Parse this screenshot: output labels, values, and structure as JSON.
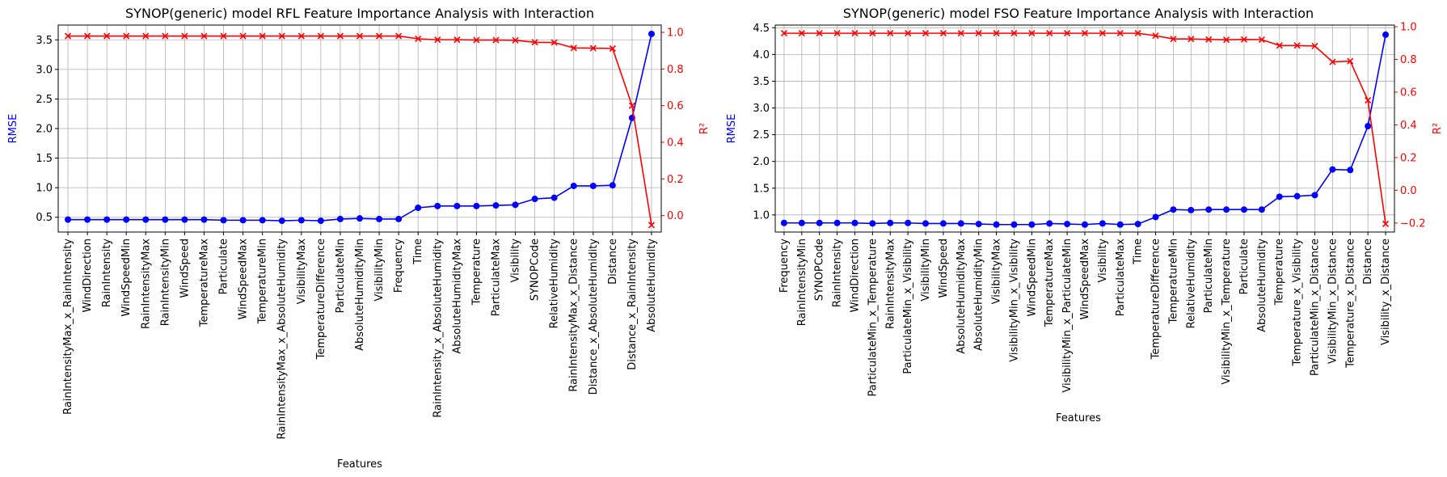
{
  "chart_data": [
    {
      "type": "line",
      "title": "SYNOP(generic) model RFL Feature Importance Analysis with Interaction",
      "xlabel": "Features",
      "ylabel_left": "RMSE",
      "ylabel_right": "R²",
      "grid": true,
      "categories": [
        "RainIntensityMax_x_RainIntensity",
        "WindDirection",
        "RainIntensity",
        "WindSpeedMin",
        "RainIntensityMax",
        "RainIntensityMin",
        "WindSpeed",
        "TemperatureMax",
        "Particulate",
        "WindSpeedMax",
        "TemperatureMin",
        "RainIntensityMax_x_AbsoluteHumidity",
        "VisibilityMax",
        "TemperatureDifference",
        "ParticulateMin",
        "AbsoluteHumidityMin",
        "VisibilityMin",
        "Frequency",
        "Time",
        "RainIntensity_x_AbsoluteHumidity",
        "AbsoluteHumidityMax",
        "Temperature",
        "ParticulateMax",
        "Visibility",
        "SYNOPCode",
        "RelativeHumidity",
        "RainIntensityMax_x_Distance",
        "Distance_x_AbsoluteHumidity",
        "Distance",
        "Distance_x_RainIntensity",
        "AbsoluteHumidity"
      ],
      "ylim_left": [
        0.25,
        3.75
      ],
      "yticks_left": [
        "0.5",
        "1.0",
        "1.5",
        "2.0",
        "2.5",
        "3.0",
        "3.5"
      ],
      "ylim_right": [
        -0.09,
        1.04
      ],
      "yticks_right": [
        "0.0",
        "0.2",
        "0.4",
        "0.6",
        "0.8",
        "1.0"
      ],
      "series": [
        {
          "axis": "left",
          "color": "#0000ff",
          "marker": "circle",
          "values": [
            0.46,
            0.46,
            0.46,
            0.46,
            0.46,
            0.46,
            0.46,
            0.46,
            0.45,
            0.45,
            0.45,
            0.44,
            0.45,
            0.44,
            0.47,
            0.48,
            0.47,
            0.47,
            0.66,
            0.69,
            0.69,
            0.69,
            0.7,
            0.71,
            0.81,
            0.83,
            1.03,
            1.03,
            1.04,
            2.18,
            3.6
          ]
        },
        {
          "axis": "right",
          "color": "#ff0000",
          "marker": "x",
          "values": [
            0.98,
            0.98,
            0.98,
            0.98,
            0.98,
            0.98,
            0.98,
            0.98,
            0.98,
            0.98,
            0.98,
            0.98,
            0.98,
            0.98,
            0.98,
            0.98,
            0.98,
            0.98,
            0.965,
            0.96,
            0.96,
            0.958,
            0.958,
            0.957,
            0.946,
            0.945,
            0.915,
            0.914,
            0.912,
            0.6,
            -0.052
          ]
        }
      ]
    },
    {
      "type": "line",
      "title": "SYNOP(generic) model FSO Feature Importance Analysis with Interaction",
      "xlabel": "Features",
      "ylabel_left": "RMSE",
      "ylabel_right": "R²",
      "grid": true,
      "categories": [
        "Frequency",
        "RainIntensityMin",
        "SYNOPCode",
        "RainIntensity",
        "WindDirection",
        "ParticulateMin_x_Temperature",
        "RainIntensityMax",
        "ParticulateMin_x_Visibility",
        "VisibilityMin",
        "WindSpeed",
        "AbsoluteHumidityMax",
        "AbsoluteHumidityMin",
        "VisibilityMax",
        "VisibilityMin_x_Visibility",
        "WindSpeedMin",
        "TemperatureMax",
        "VisibilityMin_x_ParticulateMin",
        "WindSpeedMax",
        "Visibility",
        "ParticulateMax",
        "Time",
        "TemperatureDifference",
        "TemperatureMin",
        "RelativeHumidity",
        "ParticulateMin",
        "VisibilityMin_x_Temperature",
        "Particulate",
        "AbsoluteHumidity",
        "Temperature",
        "Temperature_x_Visibility",
        "ParticulateMin_x_Distance",
        "VisibilityMin_x_Distance",
        "Temperature_x_Distance",
        "Distance",
        "Visibility_x_Distance"
      ],
      "ylim_left": [
        0.68,
        4.55
      ],
      "yticks_left": [
        "1.0",
        "1.5",
        "2.0",
        "2.5",
        "3.0",
        "3.5",
        "4.0",
        "4.5"
      ],
      "ylim_right": [
        -0.255,
        1.01
      ],
      "yticks_right": [
        "−0.2",
        "0.0",
        "0.2",
        "0.4",
        "0.6",
        "0.8",
        "1.0"
      ],
      "series": [
        {
          "axis": "left",
          "color": "#0000ff",
          "marker": "circle",
          "values": [
            0.85,
            0.85,
            0.85,
            0.85,
            0.85,
            0.84,
            0.85,
            0.85,
            0.84,
            0.84,
            0.84,
            0.83,
            0.82,
            0.82,
            0.82,
            0.84,
            0.83,
            0.82,
            0.84,
            0.82,
            0.83,
            0.96,
            1.1,
            1.09,
            1.1,
            1.1,
            1.1,
            1.1,
            1.34,
            1.35,
            1.37,
            1.85,
            1.84,
            2.66,
            4.37
          ]
        },
        {
          "axis": "right",
          "color": "#ff0000",
          "marker": "x",
          "values": [
            0.96,
            0.96,
            0.96,
            0.96,
            0.96,
            0.96,
            0.96,
            0.96,
            0.96,
            0.96,
            0.96,
            0.96,
            0.96,
            0.96,
            0.96,
            0.96,
            0.96,
            0.96,
            0.96,
            0.96,
            0.96,
            0.945,
            0.925,
            0.925,
            0.922,
            0.92,
            0.922,
            0.921,
            0.885,
            0.885,
            0.882,
            0.785,
            0.79,
            0.55,
            -0.205
          ]
        }
      ]
    }
  ]
}
